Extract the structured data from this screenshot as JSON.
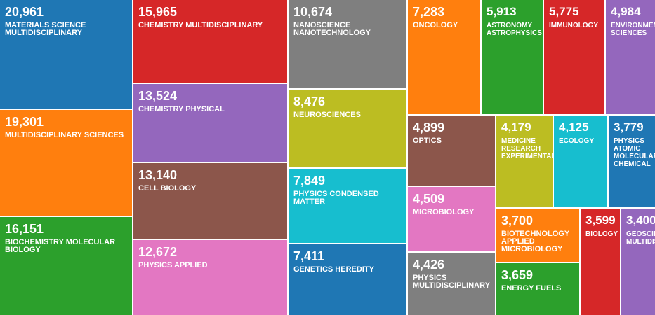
{
  "chart_data": {
    "type": "treemap",
    "items": [
      {
        "value": 20961,
        "label": "MATERIALS SCIENCE MULTIDISCIPLINARY",
        "color": "#1f77b4"
      },
      {
        "value": 19301,
        "label": "MULTIDISCIPLINARY SCIENCES",
        "color": "#ff7f0e"
      },
      {
        "value": 16151,
        "label": "BIOCHEMISTRY MOLECULAR BIOLOGY",
        "color": "#2ca02c"
      },
      {
        "value": 15965,
        "label": "CHEMISTRY MULTIDISCIPLINARY",
        "color": "#d62728"
      },
      {
        "value": 13524,
        "label": "CHEMISTRY PHYSICAL",
        "color": "#9467bd"
      },
      {
        "value": 13140,
        "label": "CELL BIOLOGY",
        "color": "#8c564b"
      },
      {
        "value": 12672,
        "label": "PHYSICS APPLIED",
        "color": "#e377c2"
      },
      {
        "value": 10674,
        "label": "NANOSCIENCE NANOTECHNOLOGY",
        "color": "#7f7f7f"
      },
      {
        "value": 8476,
        "label": "NEUROSCIENCES",
        "color": "#bcbd22"
      },
      {
        "value": 7849,
        "label": "PHYSICS CONDENSED MATTER",
        "color": "#17becf"
      },
      {
        "value": 7411,
        "label": "GENETICS HEREDITY",
        "color": "#1f77b4"
      },
      {
        "value": 7283,
        "label": "ONCOLOGY",
        "color": "#ff7f0e"
      },
      {
        "value": 5913,
        "label": "ASTRONOMY ASTROPHYSICS",
        "color": "#2ca02c"
      },
      {
        "value": 5775,
        "label": "IMMUNOLOGY",
        "color": "#d62728"
      },
      {
        "value": 4984,
        "label": "ENVIRONMENTAL SCIENCES",
        "color": "#9467bd"
      },
      {
        "value": 4899,
        "label": "OPTICS",
        "color": "#8c564b"
      },
      {
        "value": 4509,
        "label": "MICROBIOLOGY",
        "color": "#e377c2"
      },
      {
        "value": 4426,
        "label": "PHYSICS MULTIDISCIPLINARY",
        "color": "#7f7f7f"
      },
      {
        "value": 4179,
        "label": "MEDICINE RESEARCH EXPERIMENTAL",
        "color": "#bcbd22"
      },
      {
        "value": 4125,
        "label": "ECOLOGY",
        "color": "#17becf"
      },
      {
        "value": 3779,
        "label": "PHYSICS ATOMIC MOLECULAR CHEMICAL",
        "color": "#1f77b4"
      },
      {
        "value": 3700,
        "label": "BIOTECHNOLOGY APPLIED MICROBIOLOGY",
        "color": "#ff7f0e"
      },
      {
        "value": 3659,
        "label": "ENERGY FUELS",
        "color": "#2ca02c"
      },
      {
        "value": 3599,
        "label": "BIOLOGY",
        "color": "#d62728"
      },
      {
        "value": 3400,
        "label": "GEOSCIENCES MULTIDISCIPLINARY",
        "color": "#9467bd"
      }
    ]
  }
}
